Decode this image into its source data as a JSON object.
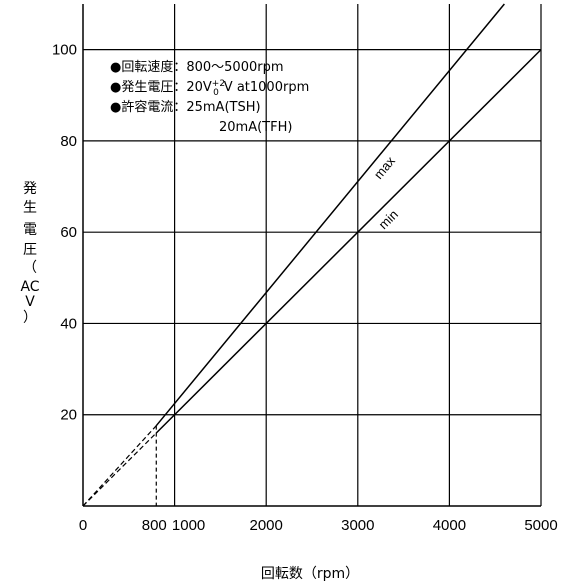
{
  "chart_data": {
    "type": "line",
    "x_axis": {
      "label": "回転数（rpm）",
      "range": [
        0,
        5000
      ],
      "ticks": [
        0,
        800,
        1000,
        2000,
        3000,
        4000,
        5000
      ],
      "grid": [
        1000,
        2000,
        3000,
        4000,
        5000
      ]
    },
    "y_axis": {
      "label_chars": [
        "発",
        "生",
        "電",
        "圧",
        "（",
        "AC",
        "V",
        "）"
      ],
      "range": [
        0,
        110
      ],
      "ticks": [
        20,
        40,
        60,
        80,
        100
      ],
      "grid": [
        20,
        40,
        60,
        80,
        100
      ]
    },
    "series": [
      {
        "name": "max",
        "points_solid": [
          [
            800,
            17.6
          ],
          [
            4600,
            110
          ]
        ],
        "points_dashed": [
          [
            0,
            0
          ],
          [
            800,
            17.6
          ]
        ]
      },
      {
        "name": "min",
        "points_solid": [
          [
            800,
            16
          ],
          [
            5000,
            100
          ]
        ],
        "points_dashed": [
          [
            0,
            0
          ],
          [
            800,
            16
          ]
        ]
      }
    ],
    "reference_line": {
      "x": 800,
      "y_top": 17.6,
      "style": "dashed"
    },
    "annotations": [
      {
        "bullet": "●",
        "key": "回転速度",
        "value": "800〜5000rpm"
      },
      {
        "bullet": "●",
        "key": "発生電圧",
        "value_prefix": "20V",
        "sup": "+2",
        "sub": "0",
        "value_suffix": "V  at1000rpm"
      },
      {
        "bullet": "●",
        "key": "許容電流",
        "value": "25mA(TSH)",
        "value2": "20mA(TFH)"
      }
    ],
    "separator": "："
  }
}
